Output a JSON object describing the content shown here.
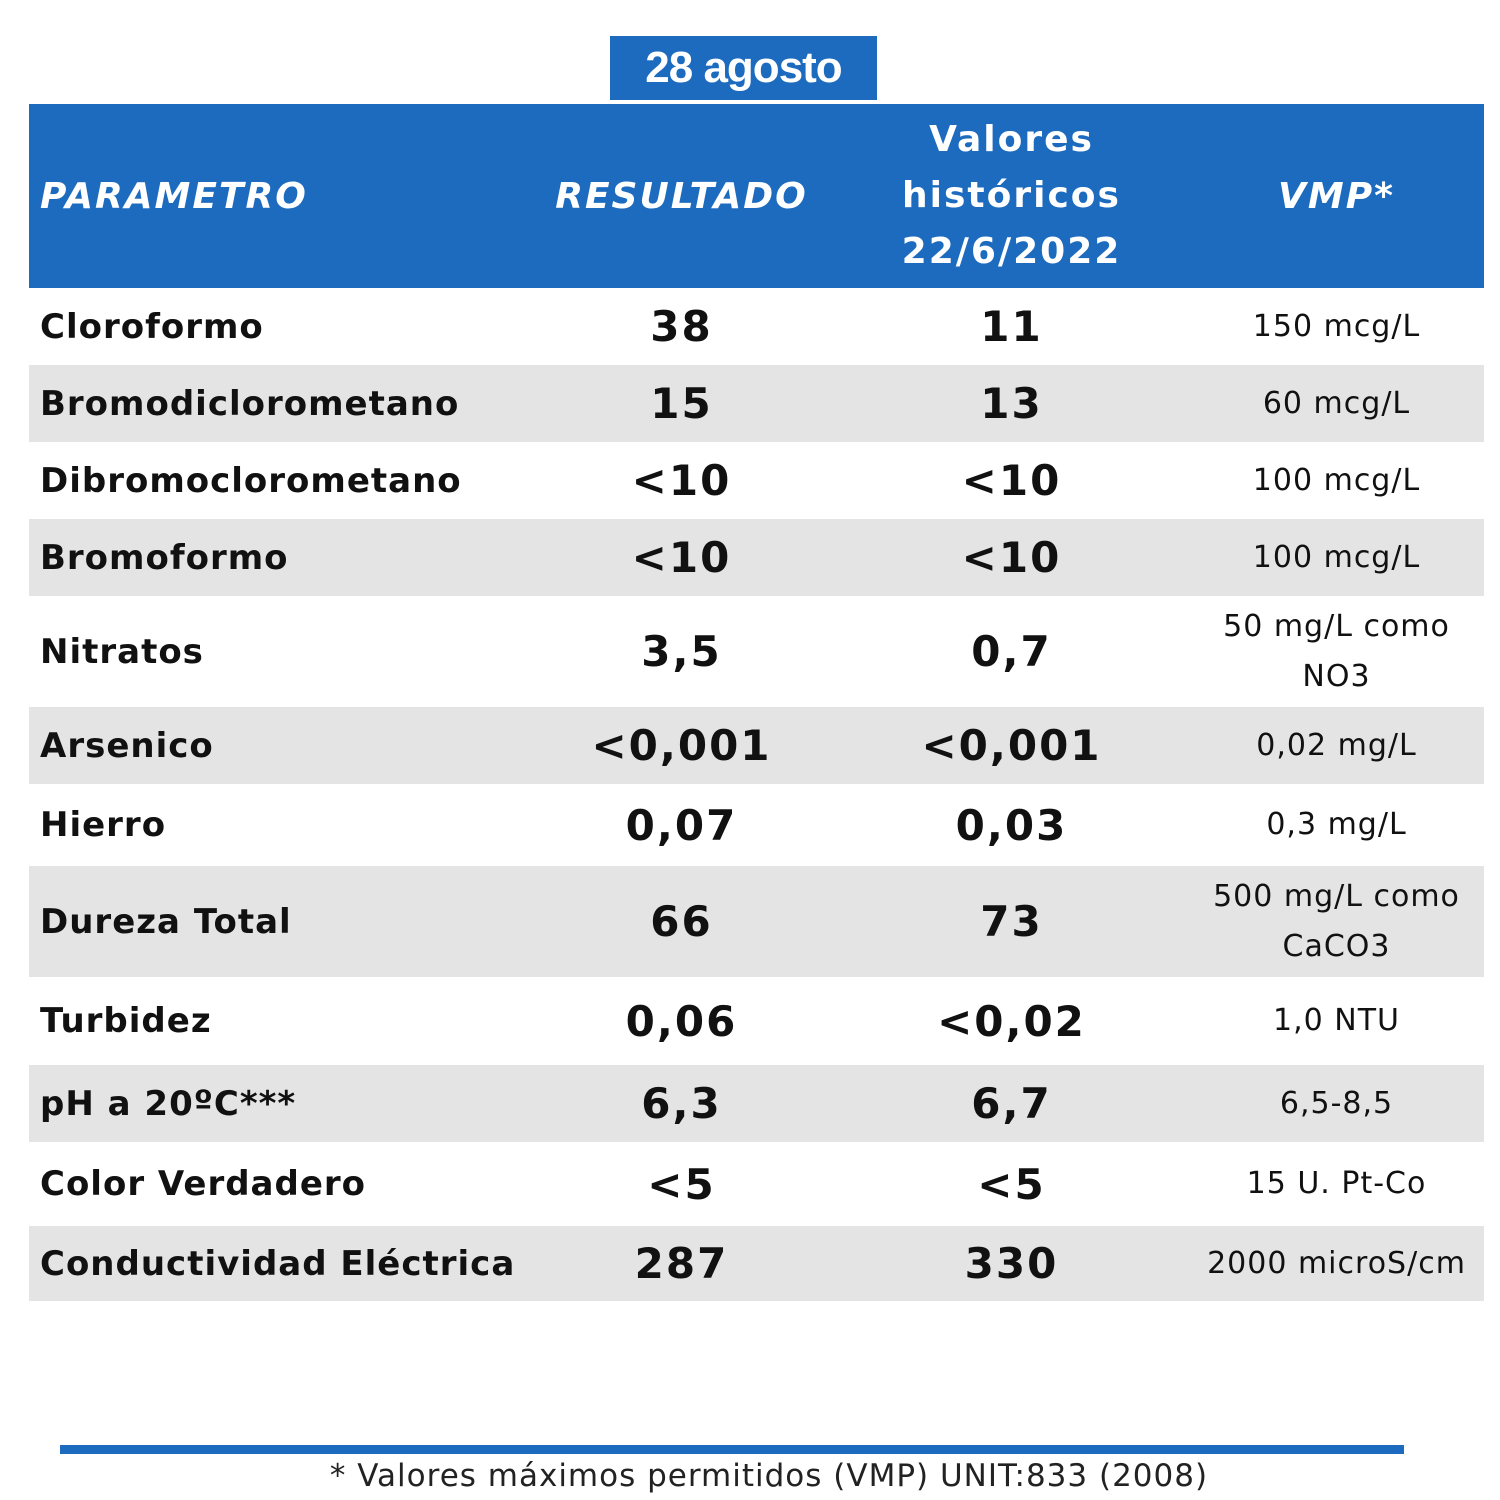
{
  "date": "28 agosto",
  "header": {
    "parametro": "PARAMETRO",
    "resultado": "RESULTADO",
    "historicos_line1": "Valores",
    "historicos_line2": "históricos",
    "historicos_line3": "22/6/2022",
    "vmp": "VMP*"
  },
  "rows": [
    {
      "parametro": "Cloroformo",
      "resultado": "38",
      "historico": "11",
      "vmp": "150 mcg/L"
    },
    {
      "parametro": "Bromodiclorometano",
      "resultado": "15",
      "historico": "13",
      "vmp": "60 mcg/L"
    },
    {
      "parametro": "Dibromoclorometano",
      "resultado": "<10",
      "historico": "<10",
      "vmp": "100 mcg/L"
    },
    {
      "parametro": "Bromoformo",
      "resultado": "<10",
      "historico": "<10",
      "vmp": "100 mcg/L"
    },
    {
      "parametro": "Nitratos",
      "resultado": "3,5",
      "historico": "0,7",
      "vmp": "50 mg/L como NO3"
    },
    {
      "parametro": "Arsenico",
      "resultado": "<0,001",
      "historico": "<0,001",
      "vmp": "0,02 mg/L"
    },
    {
      "parametro": "Hierro",
      "resultado": "0,07",
      "historico": "0,03",
      "vmp": "0,3 mg/L"
    },
    {
      "parametro": "Dureza Total",
      "resultado": "66",
      "historico": "73",
      "vmp": "500 mg/L como CaCO3"
    },
    {
      "parametro": "Turbidez",
      "resultado": "0,06",
      "historico": "<0,02",
      "vmp": "1,0 NTU"
    },
    {
      "parametro": "pH a 20ºC***",
      "resultado": "6,3",
      "historico": "6,7",
      "vmp": "6,5-8,5"
    },
    {
      "parametro": "Color Verdadero",
      "resultado": "<5",
      "historico": "<5",
      "vmp": "15 U. Pt-Co"
    },
    {
      "parametro": "Conductividad Eléctrica",
      "resultado": "287",
      "historico": "330",
      "vmp": "2000 microS/cm"
    }
  ],
  "footnote": "* Valores máximos permitidos (VMP)  UNIT:833 (2008)"
}
